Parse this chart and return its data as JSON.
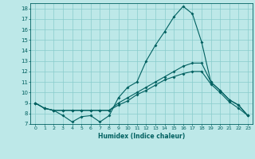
{
  "xlabel": "Humidex (Indice chaleur)",
  "xlim": [
    -0.5,
    23.5
  ],
  "ylim": [
    7,
    18.5
  ],
  "xticks": [
    0,
    1,
    2,
    3,
    4,
    5,
    6,
    7,
    8,
    9,
    10,
    11,
    12,
    13,
    14,
    15,
    16,
    17,
    18,
    19,
    20,
    21,
    22,
    23
  ],
  "yticks": [
    7,
    8,
    9,
    10,
    11,
    12,
    13,
    14,
    15,
    16,
    17,
    18
  ],
  "bg_color": "#bde8e8",
  "line_color": "#006060",
  "grid_color": "#88cccc",
  "line1_x": [
    0,
    1,
    2,
    3,
    4,
    5,
    6,
    7,
    8,
    9,
    10,
    11,
    12,
    13,
    14,
    15,
    16,
    17,
    18,
    19,
    20,
    21,
    22,
    23
  ],
  "line1_y": [
    9,
    8.5,
    8.3,
    7.8,
    7.2,
    7.7,
    7.8,
    7.2,
    7.8,
    9.5,
    10.5,
    11.0,
    13.0,
    14.5,
    15.8,
    17.2,
    18.2,
    17.5,
    14.8,
    11.0,
    10.2,
    9.3,
    8.8,
    7.8
  ],
  "line2_x": [
    0,
    1,
    2,
    3,
    4,
    5,
    6,
    7,
    8,
    9,
    10,
    11,
    12,
    13,
    14,
    15,
    16,
    17,
    18,
    19,
    20,
    21,
    22,
    23
  ],
  "line2_y": [
    9,
    8.5,
    8.3,
    8.3,
    8.3,
    8.3,
    8.3,
    8.3,
    8.3,
    9.0,
    9.5,
    10.0,
    10.5,
    11.0,
    11.5,
    12.0,
    12.5,
    12.8,
    12.8,
    11.0,
    10.2,
    9.3,
    8.8,
    7.8
  ],
  "line3_x": [
    0,
    1,
    2,
    3,
    4,
    5,
    6,
    7,
    8,
    9,
    10,
    11,
    12,
    13,
    14,
    15,
    16,
    17,
    18,
    19,
    20,
    21,
    22,
    23
  ],
  "line3_y": [
    9,
    8.5,
    8.3,
    8.3,
    8.3,
    8.3,
    8.3,
    8.3,
    8.3,
    8.8,
    9.2,
    9.8,
    10.2,
    10.7,
    11.2,
    11.5,
    11.8,
    12.0,
    12.0,
    10.8,
    10.0,
    9.1,
    8.5,
    7.8
  ]
}
